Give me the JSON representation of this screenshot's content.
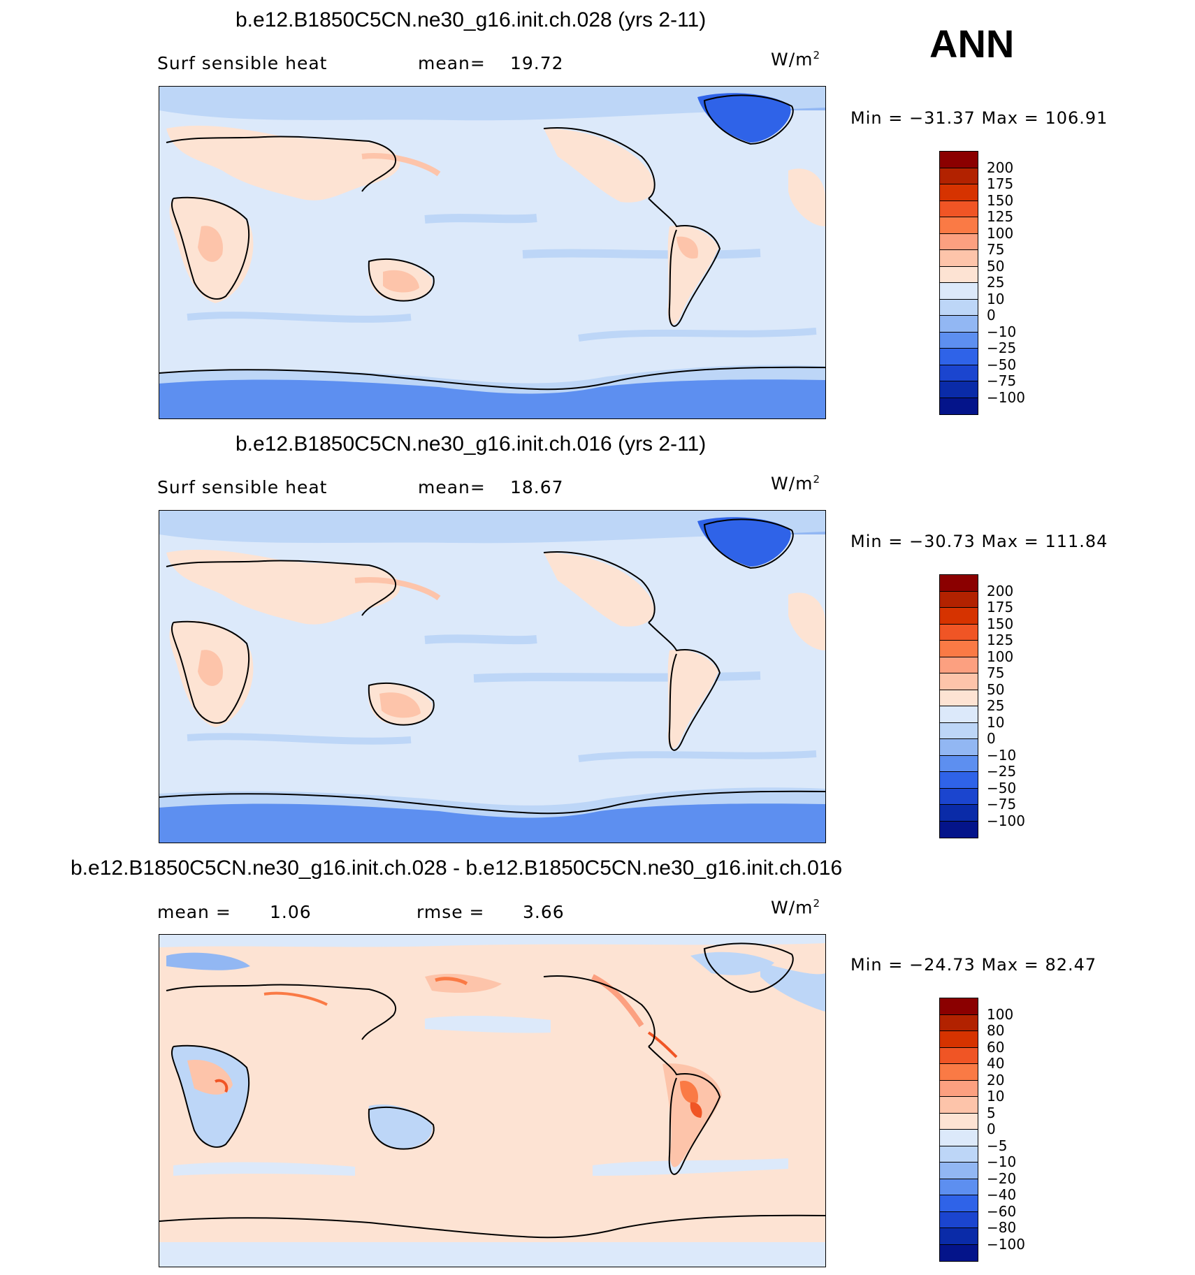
{
  "overall_label": "ANN",
  "units_label": "W/m",
  "units_sup": "2",
  "panels": [
    {
      "title": "b.e12.B1850C5CN.ne30_g16.init.ch.028 (yrs 2-11)",
      "variable": "Surf sensible heat",
      "stat1_label": "mean=",
      "stat1_value": "19.72",
      "stat2_label": "",
      "stat2_value": "",
      "min_label": "Min  =",
      "min_value": "−31.37",
      "max_label": "Max  =",
      "max_value": "106.91",
      "levels": [
        "200",
        "175",
        "150",
        "125",
        "100",
        "75",
        "50",
        "25",
        "10",
        "0",
        "−10",
        "−25",
        "−50",
        "−75",
        "−100"
      ],
      "colors": [
        "#8b0000",
        "#b22200",
        "#d63300",
        "#f05525",
        "#fa7a45",
        "#fca080",
        "#fdc4aa",
        "#fde3d3",
        "#dce9fa",
        "#bdd6f7",
        "#92b7f3",
        "#5d8ff0",
        "#2f63e8",
        "#1b45cf",
        "#0a2ba8",
        "#04148a"
      ]
    },
    {
      "title": "b.e12.B1850C5CN.ne30_g16.init.ch.016 (yrs 2-11)",
      "variable": "Surf sensible heat",
      "stat1_label": "mean=",
      "stat1_value": "18.67",
      "stat2_label": "",
      "stat2_value": "",
      "min_label": "Min  =",
      "min_value": "−30.73",
      "max_label": "Max  =",
      "max_value": "111.84",
      "levels": [
        "200",
        "175",
        "150",
        "125",
        "100",
        "75",
        "50",
        "25",
        "10",
        "0",
        "−10",
        "−25",
        "−50",
        "−75",
        "−100"
      ],
      "colors": [
        "#8b0000",
        "#b22200",
        "#d63300",
        "#f05525",
        "#fa7a45",
        "#fca080",
        "#fdc4aa",
        "#fde3d3",
        "#dce9fa",
        "#bdd6f7",
        "#92b7f3",
        "#5d8ff0",
        "#2f63e8",
        "#1b45cf",
        "#0a2ba8",
        "#04148a"
      ]
    },
    {
      "title": "b.e12.B1850C5CN.ne30_g16.init.ch.028 - b.e12.B1850C5CN.ne30_g16.init.ch.016",
      "variable": "",
      "stat1_label": "mean =",
      "stat1_value": "1.06",
      "stat2_label": "rmse =",
      "stat2_value": "3.66",
      "min_label": "Min  =",
      "min_value": "−24.73",
      "max_label": "Max  =",
      "max_value": "82.47",
      "levels": [
        "100",
        "80",
        "60",
        "40",
        "20",
        "10",
        "5",
        "0",
        "−5",
        "−10",
        "−20",
        "−40",
        "−60",
        "−80",
        "−100"
      ],
      "colors": [
        "#8b0000",
        "#b22200",
        "#d63300",
        "#f05525",
        "#fa7a45",
        "#fca080",
        "#fdc4aa",
        "#fde3d3",
        "#dce9fa",
        "#bdd6f7",
        "#92b7f3",
        "#5d8ff0",
        "#2f63e8",
        "#1b45cf",
        "#0a2ba8",
        "#04148a"
      ]
    }
  ]
}
